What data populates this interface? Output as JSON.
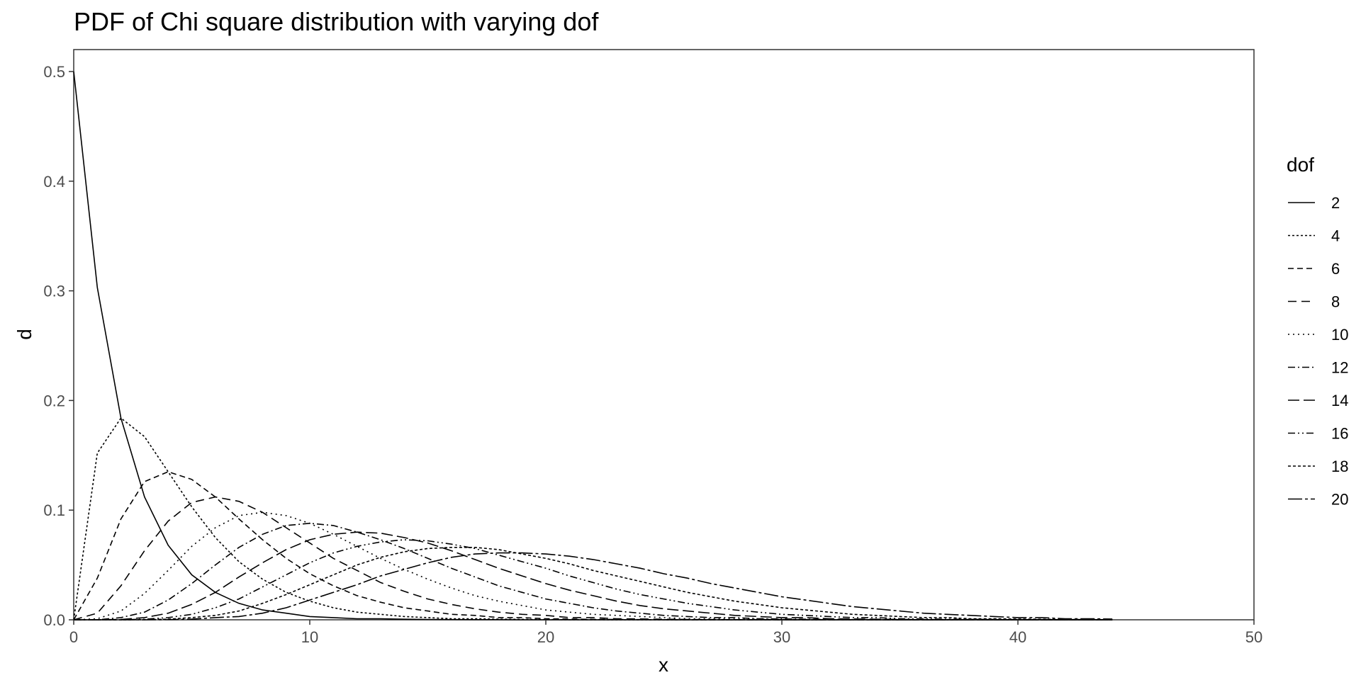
{
  "chart_data": {
    "type": "line",
    "title": "PDF of Chi square distribution with varying dof",
    "xlabel": "x",
    "ylabel": "d",
    "xlim": [
      0,
      50
    ],
    "ylim": [
      0,
      0.52
    ],
    "x_ticks": [
      "0",
      "10",
      "20",
      "30",
      "40",
      "50"
    ],
    "y_ticks": [
      "0.0",
      "0.1",
      "0.2",
      "0.3",
      "0.4",
      "0.5"
    ],
    "grid": false,
    "legend_title": "dof",
    "legend_position": "right",
    "x": [
      0,
      1,
      2,
      3,
      4,
      5,
      6,
      7,
      8,
      9,
      10,
      11,
      12,
      13,
      14,
      15,
      16,
      17,
      18,
      19,
      20,
      21,
      22,
      23,
      24,
      25,
      26,
      27,
      28,
      29,
      30,
      31,
      32,
      33,
      34,
      35,
      36,
      37,
      38,
      39,
      40,
      41,
      42,
      43,
      44
    ],
    "series": [
      {
        "name": "2",
        "dash": "none",
        "values": [
          0.5,
          0.303,
          0.184,
          0.112,
          0.068,
          0.041,
          0.025,
          0.015,
          0.009,
          0.006,
          0.003,
          0.002,
          0.001,
          0.001,
          0.0005,
          0.0003,
          0.0002,
          0.0001,
          0.0001,
          0,
          0,
          0,
          0,
          0,
          0,
          0,
          0,
          0,
          0,
          0,
          0,
          0,
          0,
          0,
          0,
          0,
          0,
          0,
          0,
          0,
          0,
          0,
          0,
          0,
          0
        ]
      },
      {
        "name": "4",
        "dash": "3 3",
        "values": [
          0,
          0.152,
          0.184,
          0.167,
          0.135,
          0.103,
          0.075,
          0.053,
          0.037,
          0.025,
          0.017,
          0.011,
          0.007,
          0.005,
          0.003,
          0.002,
          0.001,
          0.001,
          0.0006,
          0.0004,
          0.0002,
          0.0001,
          0.0001,
          0,
          0,
          0,
          0,
          0,
          0,
          0,
          0,
          0,
          0,
          0,
          0,
          0,
          0,
          0,
          0,
          0,
          0,
          0,
          0,
          0,
          0
        ]
      },
      {
        "name": "6",
        "dash": "8 5",
        "values": [
          0,
          0.038,
          0.092,
          0.126,
          0.135,
          0.128,
          0.112,
          0.092,
          0.073,
          0.056,
          0.042,
          0.031,
          0.022,
          0.016,
          0.011,
          0.008,
          0.005,
          0.004,
          0.002,
          0.002,
          0.001,
          0.0007,
          0.0004,
          0.0003,
          0.0002,
          0.0001,
          0,
          0,
          0,
          0,
          0,
          0,
          0,
          0,
          0,
          0,
          0,
          0,
          0,
          0,
          0,
          0,
          0,
          0,
          0
        ]
      },
      {
        "name": "8",
        "dash": "12 7",
        "values": [
          0,
          0.006,
          0.031,
          0.063,
          0.09,
          0.107,
          0.112,
          0.108,
          0.098,
          0.084,
          0.07,
          0.056,
          0.045,
          0.034,
          0.026,
          0.019,
          0.014,
          0.01,
          0.007,
          0.005,
          0.004,
          0.002,
          0.002,
          0.001,
          0.0008,
          0.0005,
          0.0003,
          0.0002,
          0.0001,
          0,
          0,
          0,
          0,
          0,
          0,
          0,
          0,
          0,
          0,
          0,
          0,
          0,
          0,
          0,
          0
        ]
      },
      {
        "name": "10",
        "dash": "2 5",
        "values": [
          0,
          0.001,
          0.008,
          0.024,
          0.045,
          0.067,
          0.084,
          0.095,
          0.098,
          0.095,
          0.088,
          0.078,
          0.067,
          0.056,
          0.046,
          0.037,
          0.029,
          0.022,
          0.017,
          0.013,
          0.009,
          0.007,
          0.005,
          0.004,
          0.003,
          0.002,
          0.001,
          0.001,
          0.0007,
          0.0005,
          0.0003,
          0.0002,
          0.0001,
          0.0001,
          0,
          0,
          0,
          0,
          0,
          0,
          0,
          0,
          0,
          0,
          0
        ]
      },
      {
        "name": "12",
        "dash": "10 4 2 4",
        "values": [
          0,
          0,
          0.002,
          0.007,
          0.018,
          0.033,
          0.05,
          0.066,
          0.078,
          0.086,
          0.088,
          0.086,
          0.08,
          0.073,
          0.065,
          0.056,
          0.047,
          0.039,
          0.031,
          0.025,
          0.019,
          0.015,
          0.011,
          0.008,
          0.006,
          0.004,
          0.003,
          0.002,
          0.002,
          0.001,
          0.0008,
          0.0005,
          0.0004,
          0.0002,
          0.0002,
          0.0001,
          0,
          0,
          0,
          0,
          0,
          0,
          0,
          0,
          0
        ]
      },
      {
        "name": "14",
        "dash": "16 6",
        "values": [
          0,
          0,
          0.0003,
          0.002,
          0.006,
          0.014,
          0.025,
          0.039,
          0.052,
          0.064,
          0.073,
          0.078,
          0.08,
          0.079,
          0.075,
          0.07,
          0.063,
          0.055,
          0.047,
          0.04,
          0.033,
          0.027,
          0.022,
          0.017,
          0.013,
          0.01,
          0.008,
          0.006,
          0.004,
          0.003,
          0.002,
          0.002,
          0.001,
          0.0008,
          0.0005,
          0.0004,
          0.0002,
          0.0002,
          0.0001,
          0,
          0,
          0,
          0,
          0,
          0
        ]
      },
      {
        "name": "16",
        "dash": "10 4 2 4 2 4",
        "values": [
          0,
          0,
          0,
          0.0005,
          0.002,
          0.005,
          0.011,
          0.019,
          0.03,
          0.041,
          0.052,
          0.061,
          0.067,
          0.071,
          0.073,
          0.072,
          0.069,
          0.065,
          0.059,
          0.053,
          0.047,
          0.04,
          0.034,
          0.028,
          0.023,
          0.019,
          0.015,
          0.012,
          0.009,
          0.007,
          0.005,
          0.004,
          0.003,
          0.002,
          0.002,
          0.001,
          0.0008,
          0.0006,
          0.0004,
          0.0003,
          0.0002,
          0.0001,
          0,
          0,
          0
        ]
      },
      {
        "name": "18",
        "dash": "4 3",
        "values": [
          0,
          0,
          0,
          0.0001,
          0.0006,
          0.002,
          0.004,
          0.008,
          0.015,
          0.023,
          0.032,
          0.041,
          0.05,
          0.057,
          0.062,
          0.065,
          0.066,
          0.066,
          0.064,
          0.06,
          0.056,
          0.051,
          0.045,
          0.04,
          0.035,
          0.03,
          0.025,
          0.021,
          0.017,
          0.014,
          0.011,
          0.009,
          0.007,
          0.005,
          0.004,
          0.003,
          0.002,
          0.002,
          0.001,
          0.001,
          0.0007,
          0.0005,
          0.0003,
          0.0002,
          0.0002
        ]
      },
      {
        "name": "20",
        "dash": "20 4 4 4",
        "values": [
          0,
          0,
          0,
          0,
          0.0002,
          0.0006,
          0.002,
          0.003,
          0.006,
          0.011,
          0.018,
          0.025,
          0.032,
          0.04,
          0.046,
          0.052,
          0.057,
          0.06,
          0.061,
          0.061,
          0.06,
          0.058,
          0.055,
          0.051,
          0.047,
          0.042,
          0.038,
          0.033,
          0.029,
          0.025,
          0.021,
          0.018,
          0.015,
          0.012,
          0.01,
          0.008,
          0.006,
          0.005,
          0.004,
          0.003,
          0.002,
          0.002,
          0.001,
          0.001,
          0.0007
        ]
      }
    ]
  }
}
